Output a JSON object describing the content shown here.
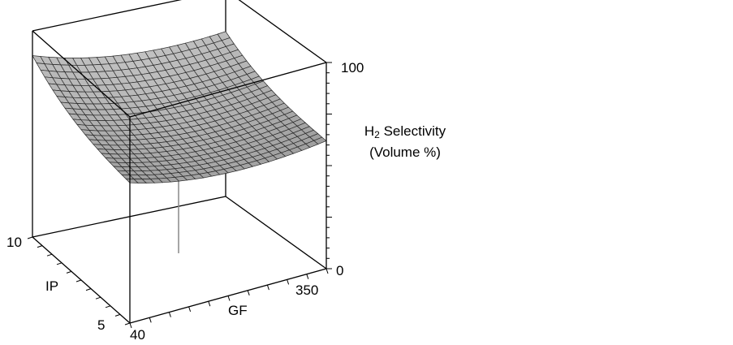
{
  "chart_data": {
    "type": "surface3d",
    "title": "",
    "axes": {
      "x": {
        "label": "GF",
        "ticks": [
          "40",
          "350"
        ],
        "range": [
          40,
          350
        ]
      },
      "z": {
        "label": "IP",
        "ticks": [
          "5",
          "10"
        ],
        "range": [
          5,
          10
        ]
      },
      "y": {
        "label_main": "H",
        "label_sub": "2",
        "label_rest": " Selectivity",
        "label_unit": "(Volume %)",
        "ticks": [
          "0",
          "100"
        ],
        "range": [
          0,
          100
        ]
      }
    },
    "surface": {
      "description_values": {
        "corner_near_left": 68,
        "corner_far_left": 88,
        "corner_far_right": 80,
        "corner_near_right": 62,
        "center_min": 40
      },
      "grid_size": 24
    },
    "grid": false,
    "box": true,
    "colors": {
      "surface": "#b9b9b9",
      "mesh": "#2a2a2a",
      "box": "#000000"
    }
  }
}
